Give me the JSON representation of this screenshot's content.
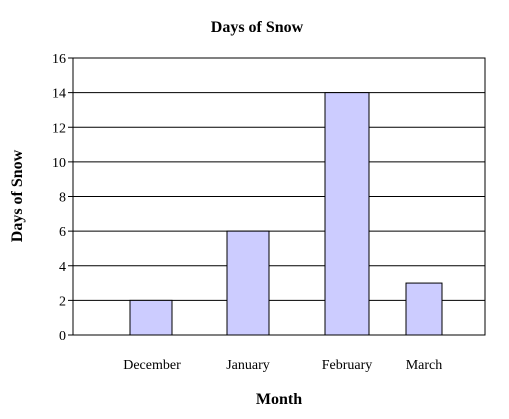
{
  "chart_data": {
    "type": "bar",
    "title": "Days of Snow",
    "xlabel": "Month",
    "ylabel": "Days of Snow",
    "categories": [
      "December",
      "January",
      "February",
      "March"
    ],
    "values": [
      2,
      6,
      14,
      3
    ],
    "ylim": [
      0,
      16
    ],
    "yticks": [
      "0",
      "2",
      "4",
      "6",
      "8",
      "10",
      "12",
      "14",
      "16"
    ],
    "grid": true,
    "legend": "none",
    "colors": {
      "bar_fill": "#ccccff",
      "bar_stroke": "#000000",
      "gridline": "#000000",
      "background": "#ffffff"
    }
  }
}
